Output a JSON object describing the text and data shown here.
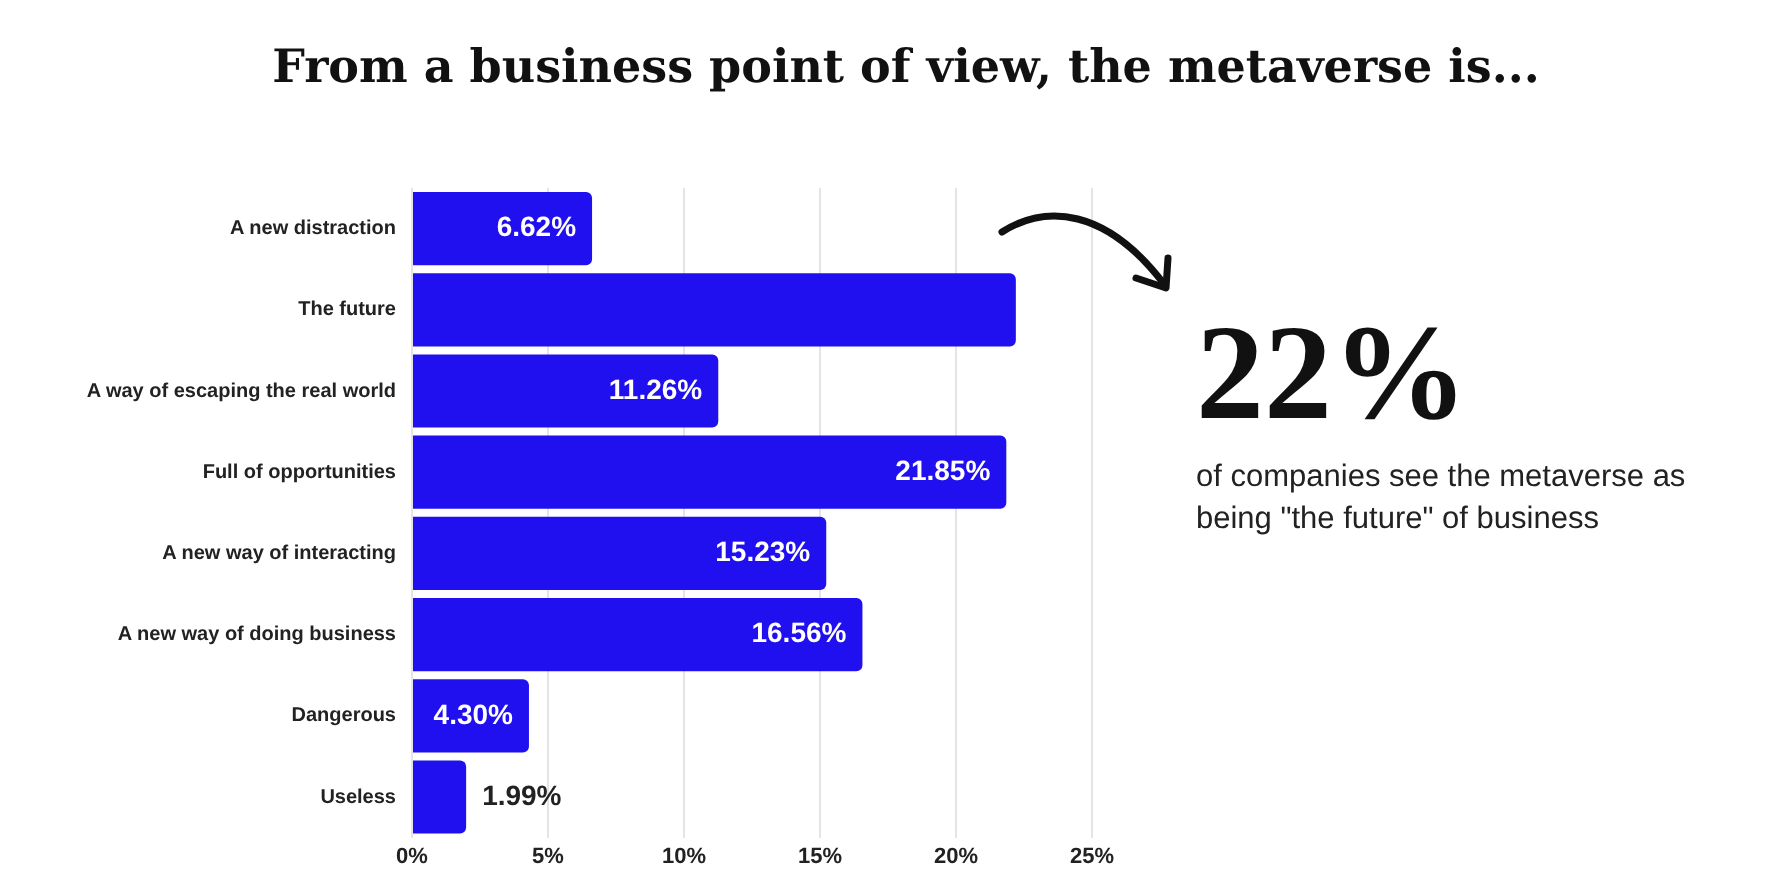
{
  "chart_data": {
    "type": "bar",
    "orientation": "horizontal",
    "title": "From a business point of view, the metaverse is...",
    "categories": [
      "A new distraction",
      "The future",
      "A way of escaping the real world",
      "Full of opportunities",
      "A new way of interacting",
      "A new way of doing business",
      "Dangerous",
      "Useless"
    ],
    "values": [
      6.62,
      22.2,
      11.26,
      21.85,
      15.23,
      16.56,
      4.3,
      1.99
    ],
    "value_labels": [
      "6.62%",
      null,
      "11.26%",
      "21.85%",
      "15.23%",
      "16.56%",
      "4.30%",
      "1.99%"
    ],
    "color": "#2010f0",
    "xlim": [
      0,
      25
    ],
    "xticks": [
      {
        "value": 0,
        "label": "0%"
      },
      {
        "value": 5,
        "label": "5%"
      },
      {
        "value": 10,
        "label": "10%"
      },
      {
        "value": 15,
        "label": "15%"
      },
      {
        "value": 20,
        "label": "20%"
      },
      {
        "value": 25,
        "label": "25%"
      }
    ],
    "grid": "x",
    "legend": false,
    "annotations": [
      "22%",
      "of companies see the metaverse as being \"the future\" of business"
    ]
  }
}
